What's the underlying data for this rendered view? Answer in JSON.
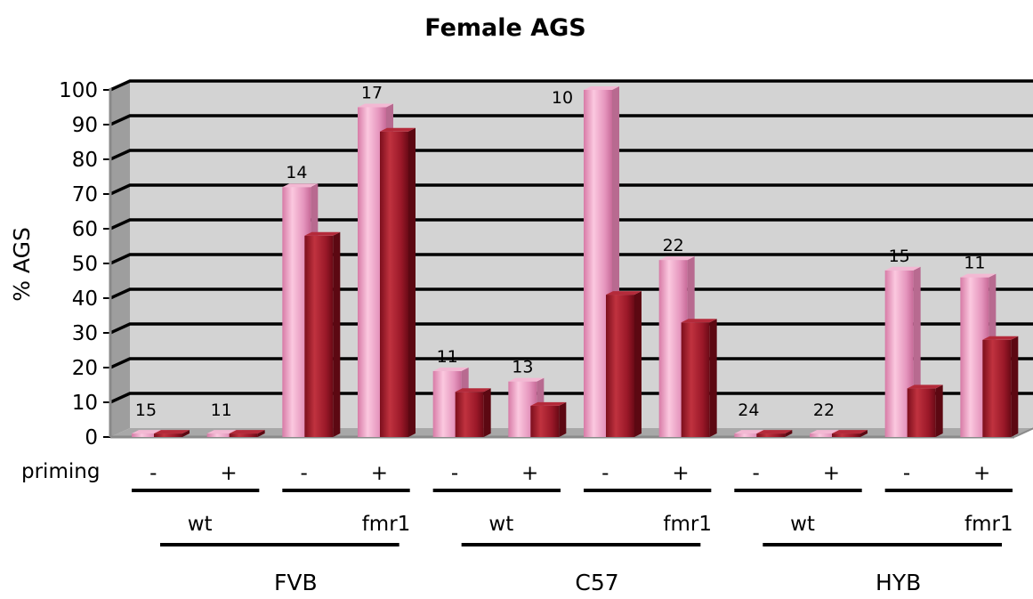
{
  "chart_data": {
    "type": "bar",
    "title": "Female AGS",
    "ylabel": "% AGS",
    "ylim": [
      0,
      100
    ],
    "yticks": [
      "0",
      "10",
      "20",
      "30",
      "40",
      "50",
      "60",
      "70",
      "80",
      "90",
      "100"
    ],
    "grid": true,
    "priming_label": "priming",
    "categories": [
      {
        "strain": "FVB",
        "genotype": "wt",
        "priming": "-",
        "n": "15",
        "light": 1,
        "dark": 1
      },
      {
        "strain": "FVB",
        "genotype": "wt",
        "priming": "+",
        "n": "11",
        "light": 1,
        "dark": 1
      },
      {
        "strain": "FVB",
        "genotype": "fmr1",
        "priming": "-",
        "n": "14",
        "light": 72,
        "dark": 58
      },
      {
        "strain": "FVB",
        "genotype": "fmr1",
        "priming": "+",
        "n": "17",
        "light": 95,
        "dark": 88
      },
      {
        "strain": "C57",
        "genotype": "wt",
        "priming": "-",
        "n": "11",
        "light": 19,
        "dark": 13
      },
      {
        "strain": "C57",
        "genotype": "wt",
        "priming": "+",
        "n": "13",
        "light": 16,
        "dark": 9
      },
      {
        "strain": "C57",
        "genotype": "fmr1",
        "priming": "-",
        "n": "10",
        "light": 100,
        "dark": 41
      },
      {
        "strain": "C57",
        "genotype": "fmr1",
        "priming": "+",
        "n": "22",
        "light": 51,
        "dark": 33
      },
      {
        "strain": "HYB",
        "genotype": "wt",
        "priming": "-",
        "n": "24",
        "light": 1,
        "dark": 1
      },
      {
        "strain": "HYB",
        "genotype": "wt",
        "priming": "+",
        "n": "22",
        "light": 1,
        "dark": 1
      },
      {
        "strain": "HYB",
        "genotype": "fmr1",
        "priming": "-",
        "n": "15",
        "light": 48,
        "dark": 14
      },
      {
        "strain": "HYB",
        "genotype": "fmr1",
        "priming": "+",
        "n": "11",
        "light": 46,
        "dark": 28
      }
    ],
    "genotype_groups": [
      "wt",
      "fmr1",
      "wt",
      "fmr1",
      "wt",
      "fmr1"
    ],
    "strain_groups": [
      "FVB",
      "C57",
      "HYB"
    ],
    "colors": {
      "light": "#e89ac0",
      "dark": "#9c1828",
      "wall": "#d3d3d3",
      "floor": "#a8a8a8"
    }
  }
}
